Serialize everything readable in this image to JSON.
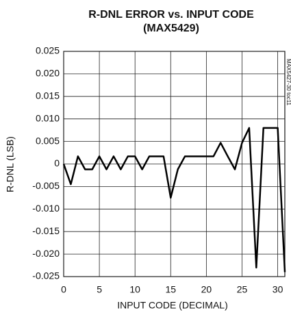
{
  "chart_data": {
    "type": "line",
    "title": "R-DNL ERROR vs. INPUT CODE",
    "subtitle": "(MAX5429)",
    "xlabel": "INPUT CODE (DECIMAL)",
    "ylabel": "R-DNL (LSB)",
    "side_note": "MAX5427-30 toc11",
    "x": [
      0,
      1,
      2,
      3,
      4,
      5,
      6,
      7,
      8,
      9,
      10,
      11,
      12,
      13,
      14,
      15,
      16,
      17,
      18,
      19,
      20,
      21,
      22,
      23,
      24,
      25,
      26,
      27,
      28,
      29,
      30,
      31
    ],
    "series": [
      {
        "name": "R-DNL",
        "color": "#000000",
        "values": [
          0,
          -0.0045,
          0.0017,
          -0.0012,
          -0.0012,
          0.0017,
          -0.0012,
          0.0017,
          -0.0012,
          0.0017,
          0.0017,
          -0.0012,
          0.0017,
          0.0017,
          0.0017,
          -0.0075,
          -0.0012,
          0.0017,
          0.0017,
          0.0017,
          0.0017,
          0.0017,
          0.0047,
          0.0017,
          -0.0012,
          0.0047,
          0.008,
          -0.023,
          0.008,
          0.008,
          0.008,
          -0.024
        ]
      }
    ],
    "xlim": [
      0,
      31
    ],
    "xticks": [
      0,
      5,
      10,
      15,
      20,
      25,
      30
    ],
    "ylim": [
      -0.025,
      0.025
    ],
    "yticks": [
      -0.025,
      {
        "value": -0.02,
        "label": "-0.020"
      },
      -0.015,
      {
        "value": -0.01,
        "label": "-0.010"
      },
      -0.005,
      0,
      0.005,
      {
        "value": 0.01,
        "label": "0.010"
      },
      0.015,
      {
        "value": 0.02,
        "label": "0.020"
      },
      0.025
    ],
    "grid": true
  }
}
